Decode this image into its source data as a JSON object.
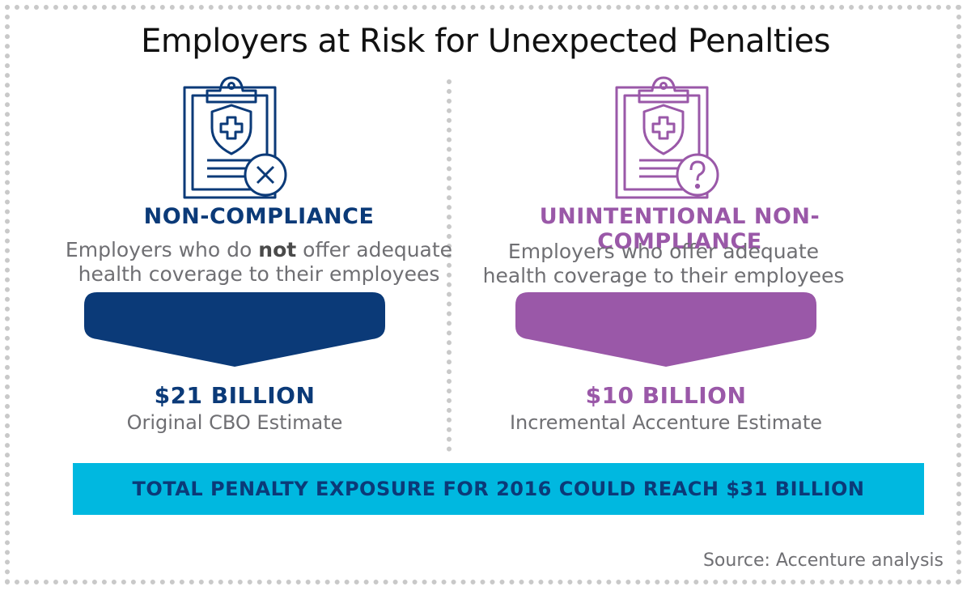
{
  "title": "Employers at Risk for Unexpected Penalties",
  "colors": {
    "navy": "#0b3a78",
    "purple": "#9a58a8",
    "cyan": "#00b8e0",
    "gray": "#6f6f73"
  },
  "left": {
    "icon": "clipboard-shield-x-icon",
    "heading": "NON-COMPLIANCE",
    "desc_pre": "Employers who do ",
    "desc_bold": "not",
    "desc_post": " offer adequate",
    "desc_line2": "health coverage to their employees",
    "amount": "$21 BILLION",
    "amount_sub": "Original CBO Estimate"
  },
  "right": {
    "icon": "clipboard-shield-question-icon",
    "heading": "UNINTENTIONAL NON-COMPLIANCE",
    "desc_line1": "Employers who offer adequate",
    "desc_line2": "health coverage to their employees",
    "amount": "$10 BILLION",
    "amount_sub": "Incremental Accenture Estimate"
  },
  "banner": "TOTAL PENALTY EXPOSURE FOR 2016 COULD REACH $31 BILLION",
  "source": "Source: Accenture analysis"
}
